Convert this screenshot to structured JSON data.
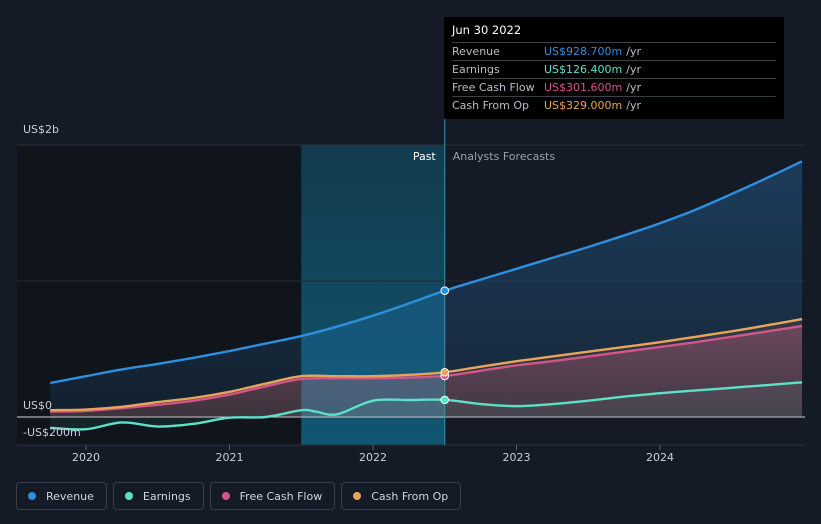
{
  "tooltip": {
    "date": "Jun 30 2022",
    "rows": [
      {
        "label": "Revenue",
        "value": "US$928.700m",
        "unit": "/yr",
        "color": "#2d8fe0"
      },
      {
        "label": "Earnings",
        "value": "US$126.400m",
        "unit": "/yr",
        "color": "#5ee0c8"
      },
      {
        "label": "Free Cash Flow",
        "value": "US$301.600m",
        "unit": "/yr",
        "color": "#d4558a"
      },
      {
        "label": "Cash From Op",
        "value": "US$329.000m",
        "unit": "/yr",
        "color": "#e8a55a"
      }
    ]
  },
  "legend": [
    {
      "label": "Revenue",
      "color": "#2d8fe0"
    },
    {
      "label": "Earnings",
      "color": "#5ee0c8"
    },
    {
      "label": "Free Cash Flow",
      "color": "#d4558a"
    },
    {
      "label": "Cash From Op",
      "color": "#e8a55a"
    }
  ],
  "chart_data": {
    "type": "line",
    "y_tick_labels": [
      "US$2b",
      "US$0",
      "-US$200m"
    ],
    "x_tick_labels": [
      "2020",
      "2021",
      "2022",
      "2023",
      "2024"
    ],
    "past_label": "Past",
    "forecast_label": "Analysts Forecasts",
    "ylim": [
      -200,
      2000
    ],
    "xlim": [
      2019.75,
      2024.99
    ],
    "past_region": [
      2021.5,
      2022.5
    ],
    "divider_x": 2022.5,
    "grid": true,
    "series": [
      {
        "name": "Revenue",
        "color": "#2d8fe0",
        "points": [
          [
            2019.75,
            250
          ],
          [
            2020.0,
            300
          ],
          [
            2020.25,
            350
          ],
          [
            2020.5,
            390
          ],
          [
            2020.75,
            435
          ],
          [
            2021.0,
            485
          ],
          [
            2021.25,
            540
          ],
          [
            2021.5,
            595
          ],
          [
            2021.75,
            665
          ],
          [
            2022.0,
            745
          ],
          [
            2022.25,
            835
          ],
          [
            2022.5,
            929
          ],
          [
            2022.75,
            1010
          ],
          [
            2023.0,
            1090
          ],
          [
            2023.25,
            1170
          ],
          [
            2023.5,
            1250
          ],
          [
            2023.75,
            1335
          ],
          [
            2024.0,
            1425
          ],
          [
            2024.25,
            1525
          ],
          [
            2024.5,
            1640
          ],
          [
            2024.75,
            1760
          ],
          [
            2024.99,
            1880
          ]
        ]
      },
      {
        "name": "Earnings",
        "color": "#5ee0c8",
        "points": [
          [
            2019.75,
            -80
          ],
          [
            2020.0,
            -90
          ],
          [
            2020.25,
            -40
          ],
          [
            2020.5,
            -70
          ],
          [
            2020.75,
            -50
          ],
          [
            2021.0,
            -5
          ],
          [
            2021.25,
            0
          ],
          [
            2021.5,
            50
          ],
          [
            2021.6,
            40
          ],
          [
            2021.75,
            20
          ],
          [
            2022.0,
            120
          ],
          [
            2022.25,
            125
          ],
          [
            2022.5,
            126
          ],
          [
            2022.75,
            95
          ],
          [
            2023.0,
            80
          ],
          [
            2023.25,
            95
          ],
          [
            2023.5,
            120
          ],
          [
            2023.75,
            150
          ],
          [
            2024.0,
            175
          ],
          [
            2024.25,
            195
          ],
          [
            2024.5,
            215
          ],
          [
            2024.75,
            235
          ],
          [
            2024.99,
            255
          ]
        ]
      },
      {
        "name": "Free Cash Flow",
        "color": "#d4558a",
        "points": [
          [
            2019.75,
            40
          ],
          [
            2020.0,
            45
          ],
          [
            2020.25,
            65
          ],
          [
            2020.5,
            90
          ],
          [
            2020.75,
            120
          ],
          [
            2021.0,
            165
          ],
          [
            2021.25,
            225
          ],
          [
            2021.5,
            280
          ],
          [
            2021.75,
            285
          ],
          [
            2022.0,
            285
          ],
          [
            2022.25,
            290
          ],
          [
            2022.5,
            302
          ],
          [
            2022.75,
            340
          ],
          [
            2023.0,
            380
          ],
          [
            2023.25,
            410
          ],
          [
            2023.5,
            445
          ],
          [
            2023.75,
            480
          ],
          [
            2024.0,
            515
          ],
          [
            2024.25,
            550
          ],
          [
            2024.5,
            590
          ],
          [
            2024.75,
            630
          ],
          [
            2024.99,
            670
          ]
        ]
      },
      {
        "name": "Cash From Op",
        "color": "#e8a55a",
        "points": [
          [
            2019.75,
            50
          ],
          [
            2020.0,
            55
          ],
          [
            2020.25,
            75
          ],
          [
            2020.5,
            110
          ],
          [
            2020.75,
            140
          ],
          [
            2021.0,
            185
          ],
          [
            2021.25,
            245
          ],
          [
            2021.5,
            300
          ],
          [
            2021.75,
            300
          ],
          [
            2022.0,
            300
          ],
          [
            2022.25,
            310
          ],
          [
            2022.5,
            329
          ],
          [
            2022.75,
            370
          ],
          [
            2023.0,
            410
          ],
          [
            2023.25,
            445
          ],
          [
            2023.5,
            480
          ],
          [
            2023.75,
            515
          ],
          [
            2024.0,
            550
          ],
          [
            2024.25,
            590
          ],
          [
            2024.5,
            630
          ],
          [
            2024.75,
            675
          ],
          [
            2024.99,
            720
          ]
        ]
      }
    ]
  }
}
